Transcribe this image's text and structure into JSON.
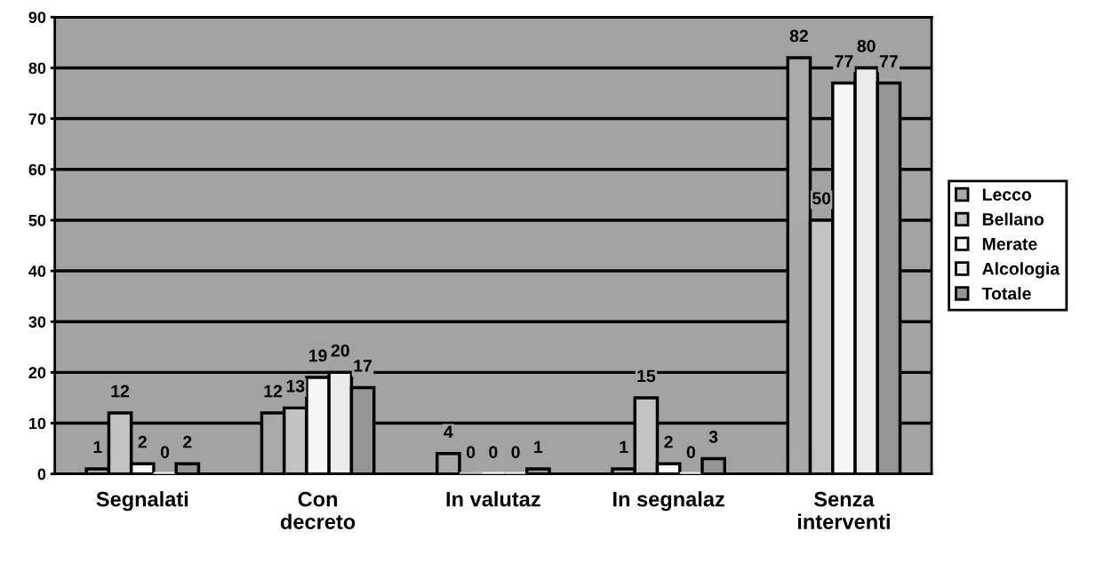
{
  "chart_data": {
    "type": "bar",
    "categories": [
      "Segnalati",
      "Con\ndecreto",
      "In valutaz",
      "In segnalaz",
      "Senza\ninterventi"
    ],
    "series": [
      {
        "name": "Lecco",
        "color": "#a9a9a9",
        "values": [
          1,
          12,
          4,
          1,
          82
        ]
      },
      {
        "name": "Bellano",
        "color": "#c2c2c2",
        "values": [
          12,
          13,
          0,
          15,
          50
        ]
      },
      {
        "name": "Merate",
        "color": "#f7f7f7",
        "values": [
          2,
          19,
          0,
          2,
          77
        ]
      },
      {
        "name": "Alcologia",
        "color": "#ebebeb",
        "values": [
          0,
          20,
          0,
          0,
          80
        ]
      },
      {
        "name": "Totale",
        "color": "#959595",
        "values": [
          2,
          17,
          1,
          3,
          77
        ]
      }
    ],
    "ylim": [
      0,
      90
    ],
    "yticks": [
      0,
      10,
      20,
      30,
      40,
      50,
      60,
      70,
      80,
      90
    ],
    "grid": "y",
    "legend": "right",
    "data_labels": true
  }
}
